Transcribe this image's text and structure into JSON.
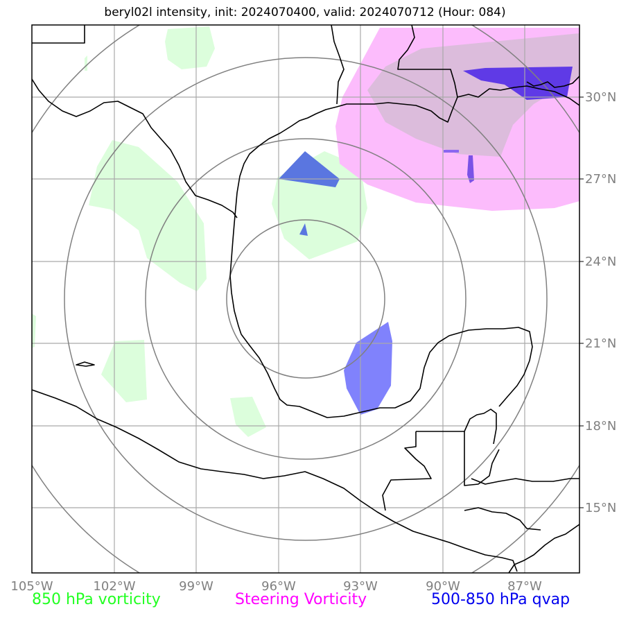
{
  "title": "beryl02l intensity, init: 2024070400, valid: 2024070712 (Hour: 084)",
  "lon_labels": [
    "105°W",
    "102°W",
    "99°W",
    "96°W",
    "93°W",
    "90°W",
    "87°W"
  ],
  "lat_labels": [
    "30°N",
    "27°N",
    "24°N",
    "21°N",
    "18°N",
    "15°N"
  ],
  "legend": {
    "vort850": "850 hPa vorticity",
    "steering": "Steering Vorticity",
    "qvap": "500-850 hPa qvap"
  },
  "colors": {
    "vort850": "#22ff22",
    "steering": "#ff00ff",
    "qvap": "#0000ee",
    "grid": "#808080",
    "coast": "#000000"
  }
}
